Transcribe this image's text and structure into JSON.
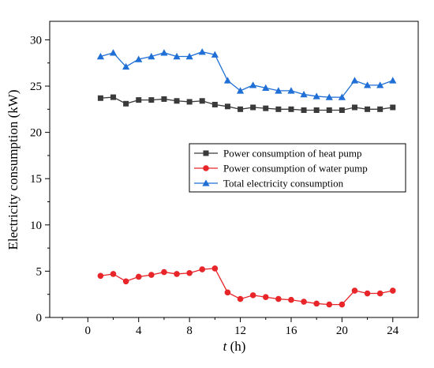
{
  "chart_data": {
    "type": "line",
    "xlabel_italic": "t",
    "xlabel_unit": " (h)",
    "ylabel": "Electricity consumption (kW)",
    "xlim": [
      -3,
      26
    ],
    "ylim": [
      0,
      32
    ],
    "xticks": [
      0,
      4,
      8,
      12,
      16,
      20,
      24
    ],
    "yticks": [
      0,
      5,
      10,
      15,
      20,
      25,
      30
    ],
    "grid": false,
    "legend_position": "center-right",
    "x": [
      1,
      2,
      3,
      4,
      5,
      6,
      7,
      8,
      9,
      10,
      11,
      12,
      13,
      14,
      15,
      16,
      17,
      18,
      19,
      20,
      21,
      22,
      23,
      24
    ],
    "series": [
      {
        "name": "Power consumption of heat pump",
        "color": "#3a3a3a",
        "marker": "square",
        "values": [
          23.7,
          23.8,
          23.1,
          23.5,
          23.5,
          23.6,
          23.4,
          23.3,
          23.4,
          23.0,
          22.8,
          22.5,
          22.7,
          22.6,
          22.5,
          22.5,
          22.4,
          22.4,
          22.4,
          22.4,
          22.7,
          22.5,
          22.5,
          22.7
        ]
      },
      {
        "name": "Power consumption of water pump",
        "color": "#e8262a",
        "marker": "circle",
        "values": [
          4.5,
          4.7,
          3.9,
          4.4,
          4.6,
          4.9,
          4.7,
          4.8,
          5.2,
          5.3,
          2.7,
          2.0,
          2.4,
          2.2,
          2.0,
          1.9,
          1.7,
          1.5,
          1.4,
          1.4,
          2.9,
          2.6,
          2.6,
          2.9
        ]
      },
      {
        "name": "Total electricity consumption",
        "color": "#1f6fd6",
        "marker": "triangle",
        "values": [
          28.2,
          28.6,
          27.1,
          27.9,
          28.2,
          28.6,
          28.2,
          28.2,
          28.7,
          28.4,
          25.6,
          24.5,
          25.1,
          24.8,
          24.5,
          24.5,
          24.1,
          23.9,
          23.8,
          23.8,
          25.6,
          25.1,
          25.1,
          25.6
        ]
      }
    ]
  }
}
